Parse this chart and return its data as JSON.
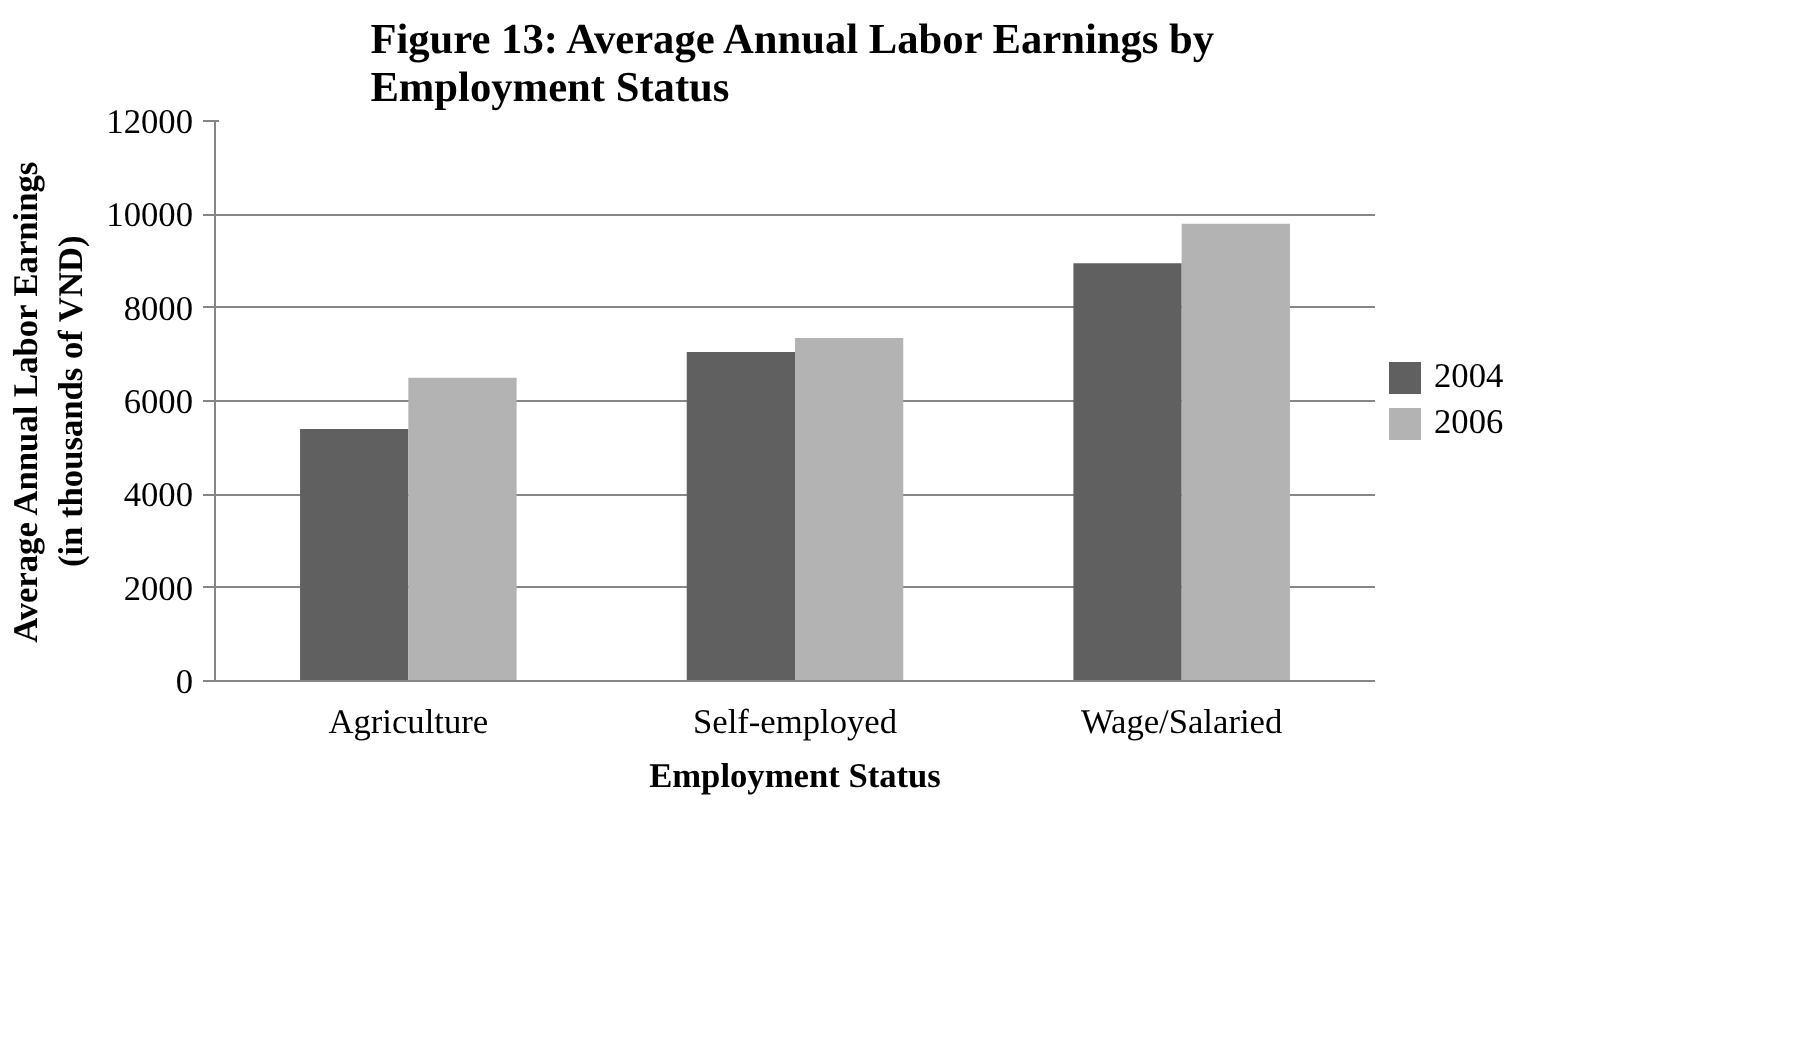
{
  "chart_data": {
    "type": "bar",
    "title": "Figure 13: Average Annual Labor Earnings by Employment Status",
    "xlabel": "Employment Status",
    "ylabel": "Average Annual Labor Earnings (in thousands of VND)",
    "categories": [
      "Agriculture",
      "Self-employed",
      "Wage/Salaried"
    ],
    "series": [
      {
        "name": "2004",
        "color": "#606060",
        "values": [
          5400,
          7050,
          8950
        ]
      },
      {
        "name": "2006",
        "color": "#b3b3b3",
        "values": [
          6500,
          7350,
          9800
        ]
      }
    ],
    "ylim": [
      0,
      12000
    ],
    "yticks": [
      0,
      2000,
      4000,
      6000,
      8000,
      10000,
      12000
    ],
    "grid": "y",
    "legend": "right"
  }
}
